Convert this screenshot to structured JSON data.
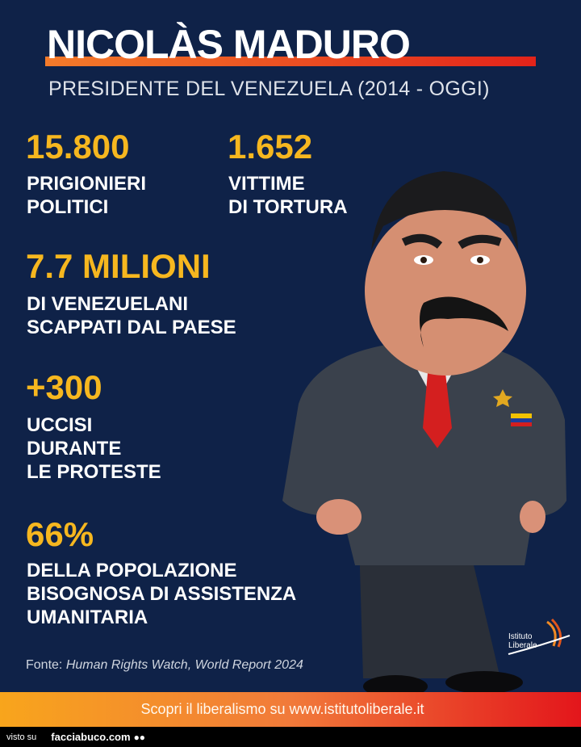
{
  "header": {
    "title": "NICOLÀS MADURO",
    "subtitle": "PRESIDENTE DEL VENEZUELA (2014 - OGGI)"
  },
  "stats": [
    {
      "value": "15.800",
      "label": "PRIGIONIERI\nPOLITICI"
    },
    {
      "value": "1.652",
      "label": "VITTIME\nDI TORTURA"
    },
    {
      "value": "7.7 MILIONI",
      "label": "DI VENEZUELANI\nSCAPPATI DAL PAESE"
    },
    {
      "value": "+300",
      "label": "UCCISI\nDURANTE\nLE PROTESTE"
    },
    {
      "value": "66%",
      "label": "DELLA POPOLAZIONE\nBISOGNOSA DI ASSISTENZA\nUMANITARIA"
    }
  ],
  "source": {
    "prefix": "Fonte: ",
    "text": "Human Rights Watch, World Report 2024"
  },
  "logo": {
    "text": "Istituto\nLiberale"
  },
  "footer": {
    "text": "Scopri il liberalismo su www.istitutoliberale.it"
  },
  "watermark": {
    "prefix": "visto su",
    "site": "facciabuco.com",
    "icon": "eyes-icon"
  },
  "colors": {
    "background": "#0f2248",
    "accent": "#f6b71f",
    "bar": "#e2231a"
  }
}
